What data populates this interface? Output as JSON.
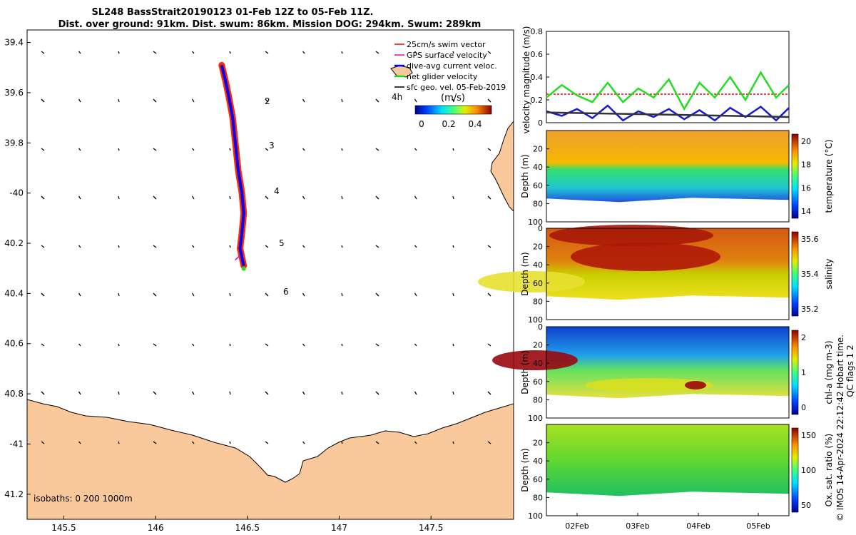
{
  "title": {
    "line1": "SL248 BassStrait20190123 01-Feb 12Z to 05-Feb 11Z.",
    "line2": "Dist. over ground: 91km. Dist. swum: 86km. Mission DOG: 294km. Swum: 289km"
  },
  "colors": {
    "land": "#f9c89b",
    "track_red": "#ff2a00",
    "track_blue": "#0000ff",
    "green": "#22dd22",
    "swim_ref": "#ff0000",
    "gps": "#e000e0",
    "glider_vel": "#1a1ad6",
    "sfc": "#202020"
  },
  "map": {
    "legend": [
      {
        "label": "25cm/s swim vector",
        "color": "#ff0000"
      },
      {
        "label": "GPS surface velocity",
        "color": "#e000e0"
      },
      {
        "label": "dive-avg current veloc.",
        "color": "#0000ff"
      },
      {
        "label": "net glider velocity",
        "color": "#22dd22"
      },
      {
        "label": "sfc geo. vel. 05-Feb-2019",
        "color": "#000000"
      }
    ],
    "colorbar": {
      "label": "(m/s)",
      "ticks": [
        "0",
        "0.2",
        "0.4"
      ],
      "note": "4h"
    },
    "isobaths": "isobaths: 0   200  1000m",
    "day_labels": [
      "2",
      "3",
      "4",
      "5",
      "6"
    ],
    "xlim": [
      145.3,
      147.95
    ],
    "ylim": [
      -41.3,
      -39.35
    ],
    "xticks": [
      145.5,
      146,
      146.5,
      147,
      147.5
    ],
    "xtick_labels": [
      "145.5",
      "146",
      "146.5",
      "147",
      "147.5"
    ],
    "yticks": [
      -39.4,
      -39.6,
      -39.8,
      -40,
      -40.2,
      -40.4,
      -40.6,
      -40.8,
      -41,
      -41.2
    ],
    "ytick_labels": [
      "39.4",
      "39.6",
      "39.8",
      "-40",
      "40.2",
      "40.4",
      "40.6",
      "40.8",
      "-41",
      "41.2"
    ],
    "track": [
      [
        146.36,
        -39.49
      ],
      [
        146.38,
        -39.55
      ],
      [
        146.4,
        -39.62
      ],
      [
        146.42,
        -39.7
      ],
      [
        146.43,
        -39.77
      ],
      [
        146.44,
        -39.84
      ],
      [
        146.45,
        -39.91
      ],
      [
        146.47,
        -40.0
      ],
      [
        146.48,
        -40.08
      ],
      [
        146.47,
        -40.16
      ],
      [
        146.46,
        -40.22
      ],
      [
        146.48,
        -40.29
      ]
    ]
  },
  "chart_data": [
    {
      "type": "line",
      "ylabel": "velocity magnitude (m/s)",
      "xlim": [
        "01-Feb 12Z",
        "05-Feb 11Z"
      ],
      "ylim": [
        0,
        0.8
      ],
      "yticks": [
        "0",
        "0.2",
        "0.4",
        "0.6",
        "0.8"
      ],
      "series": [
        {
          "name": "25cm/s swim vector",
          "color": "#ff0000",
          "x": [
            0,
            3.96
          ],
          "values": [
            0.25,
            0.25
          ]
        },
        {
          "color": "#22dd22",
          "x": [
            0,
            0.25,
            0.5,
            0.75,
            1,
            1.25,
            1.5,
            1.75,
            2,
            2.25,
            2.5,
            2.75,
            3,
            3.25,
            3.5,
            3.75,
            3.96
          ],
          "values": [
            0.22,
            0.33,
            0.24,
            0.18,
            0.35,
            0.18,
            0.3,
            0.22,
            0.38,
            0.12,
            0.35,
            0.22,
            0.4,
            0.2,
            0.44,
            0.22,
            0.33
          ]
        },
        {
          "color": "#1a1ad6",
          "x": [
            0,
            0.25,
            0.5,
            0.75,
            1,
            1.25,
            1.5,
            1.75,
            2,
            2.25,
            2.5,
            2.75,
            3,
            3.25,
            3.5,
            3.75,
            3.96
          ],
          "values": [
            0.1,
            0.06,
            0.12,
            0.04,
            0.15,
            0.02,
            0.1,
            0.05,
            0.12,
            0.03,
            0.11,
            0.02,
            0.13,
            0.05,
            0.14,
            0.02,
            0.13
          ]
        },
        {
          "color": "#333333",
          "x": [
            0,
            1,
            2,
            3,
            3.96
          ],
          "values": [
            0.09,
            0.08,
            0.07,
            0.06,
            0.05
          ]
        }
      ]
    },
    {
      "type": "heatmap",
      "ylabel": "Depth (m)",
      "cbar_label": "temperature (°C)",
      "yticks": [
        "20",
        "40",
        "60",
        "80",
        "100"
      ],
      "cbar_ticks": [
        "14",
        "16",
        "18",
        "20"
      ]
    },
    {
      "type": "heatmap",
      "ylabel": "Depth (m)",
      "cbar_label": "salinity",
      "yticks": [
        "0",
        "20",
        "40",
        "60",
        "80",
        "100"
      ],
      "cbar_ticks": [
        "35.2",
        "35.4",
        "35.6"
      ]
    },
    {
      "type": "heatmap",
      "ylabel": "Depth (m)",
      "cbar_label": "chl-a (mg m-3)",
      "yticks": [
        "0",
        "20",
        "40",
        "60",
        "80",
        "100"
      ],
      "cbar_ticks": [
        "0",
        "1",
        "2"
      ]
    },
    {
      "type": "heatmap",
      "ylabel": "Depth (m)",
      "cbar_label": "Ox. sat. ratio (%)",
      "yticks": [
        "20",
        "40",
        "60",
        "80",
        "100"
      ],
      "cbar_ticks": [
        "50",
        "100",
        "150"
      ]
    }
  ],
  "time_axis": {
    "ticks": [
      "02Feb",
      "03Feb",
      "04Feb",
      "05Feb"
    ]
  },
  "side_note": "QC flags 1  2",
  "credit": "© IMOS 14-Apr-2024 22:12:42 Hobart time."
}
